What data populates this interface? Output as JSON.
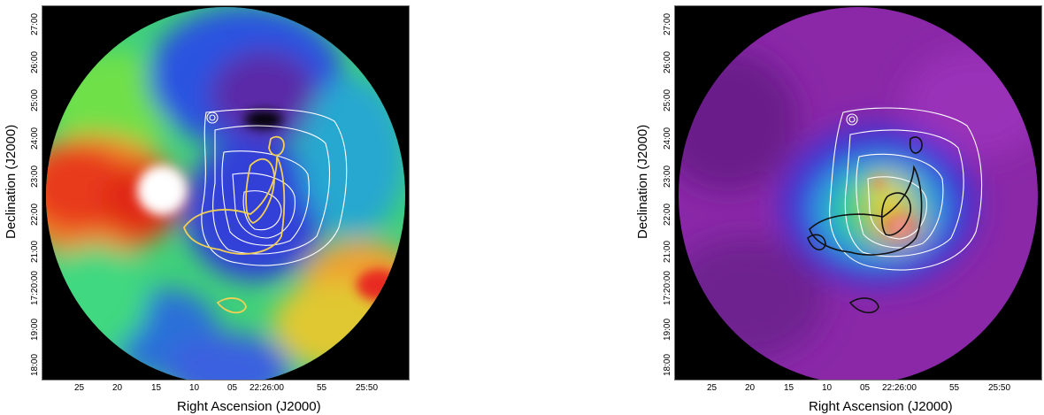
{
  "panels": [
    {
      "id": "left",
      "ylabel": "Declination (J2000)",
      "xlabel": "Right Ascension (J2000)",
      "yticks": [
        "27:00",
        "26:00",
        "25:00",
        "24:00",
        "23:00",
        "22:00",
        "21:00",
        "17:20:00",
        "19:00",
        "18:00"
      ],
      "xticks": [
        "25",
        "20",
        "15",
        "10",
        "05",
        "22:26:00",
        "55",
        "25:50"
      ],
      "contour_colors": [
        "#ffffff",
        "#f2cf55"
      ]
    },
    {
      "id": "right",
      "ylabel": "Declination (J2000)",
      "xlabel": "Right Ascension (J2000)",
      "yticks": [
        "27:00",
        "26:00",
        "25:00",
        "24:00",
        "23:00",
        "22:00",
        "21:00",
        "17:20:00",
        "19:00",
        "18:00"
      ],
      "xticks": [
        "25",
        "20",
        "15",
        "10",
        "05",
        "22:26:00",
        "55",
        "25:50"
      ],
      "contour_colors": [
        "#ffffff",
        "#111111"
      ]
    }
  ]
}
